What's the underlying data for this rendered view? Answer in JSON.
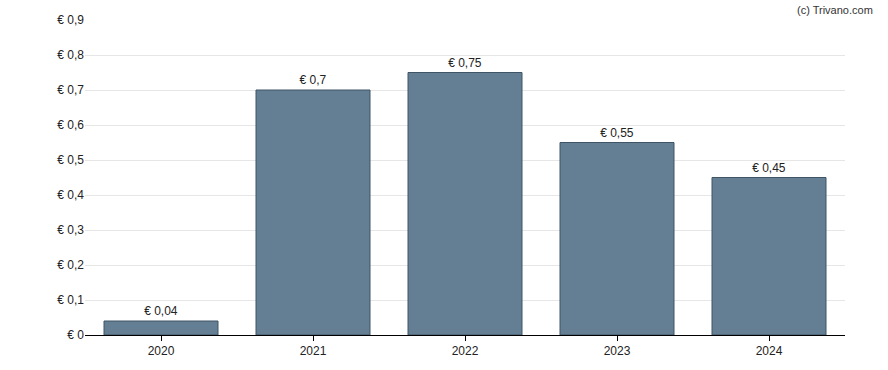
{
  "chart_data": {
    "type": "bar",
    "categories": [
      "2020",
      "2021",
      "2022",
      "2023",
      "2024"
    ],
    "values": [
      0.04,
      0.7,
      0.75,
      0.55,
      0.45
    ],
    "value_labels": [
      "€ 0,04",
      "€ 0,7",
      "€ 0,75",
      "€ 0,55",
      "€ 0,45"
    ],
    "data_labels": true,
    "color": "#647f94",
    "ylim": [
      0,
      0.9
    ],
    "yticks": [
      {
        "value": 0,
        "label": "€ 0"
      },
      {
        "value": 0.1,
        "label": "€ 0,1"
      },
      {
        "value": 0.2,
        "label": "€ 0,2"
      },
      {
        "value": 0.3,
        "label": "€ 0,3"
      },
      {
        "value": 0.4,
        "label": "€ 0,4"
      },
      {
        "value": 0.5,
        "label": "€ 0,5"
      },
      {
        "value": 0.6,
        "label": "€ 0,6"
      },
      {
        "value": 0.7,
        "label": "€ 0,7"
      },
      {
        "value": 0.8,
        "label": "€ 0,8"
      },
      {
        "value": 0.9,
        "label": "€ 0,9"
      }
    ],
    "grid": true,
    "annotations": [
      "(c) Trivano.com"
    ]
  }
}
